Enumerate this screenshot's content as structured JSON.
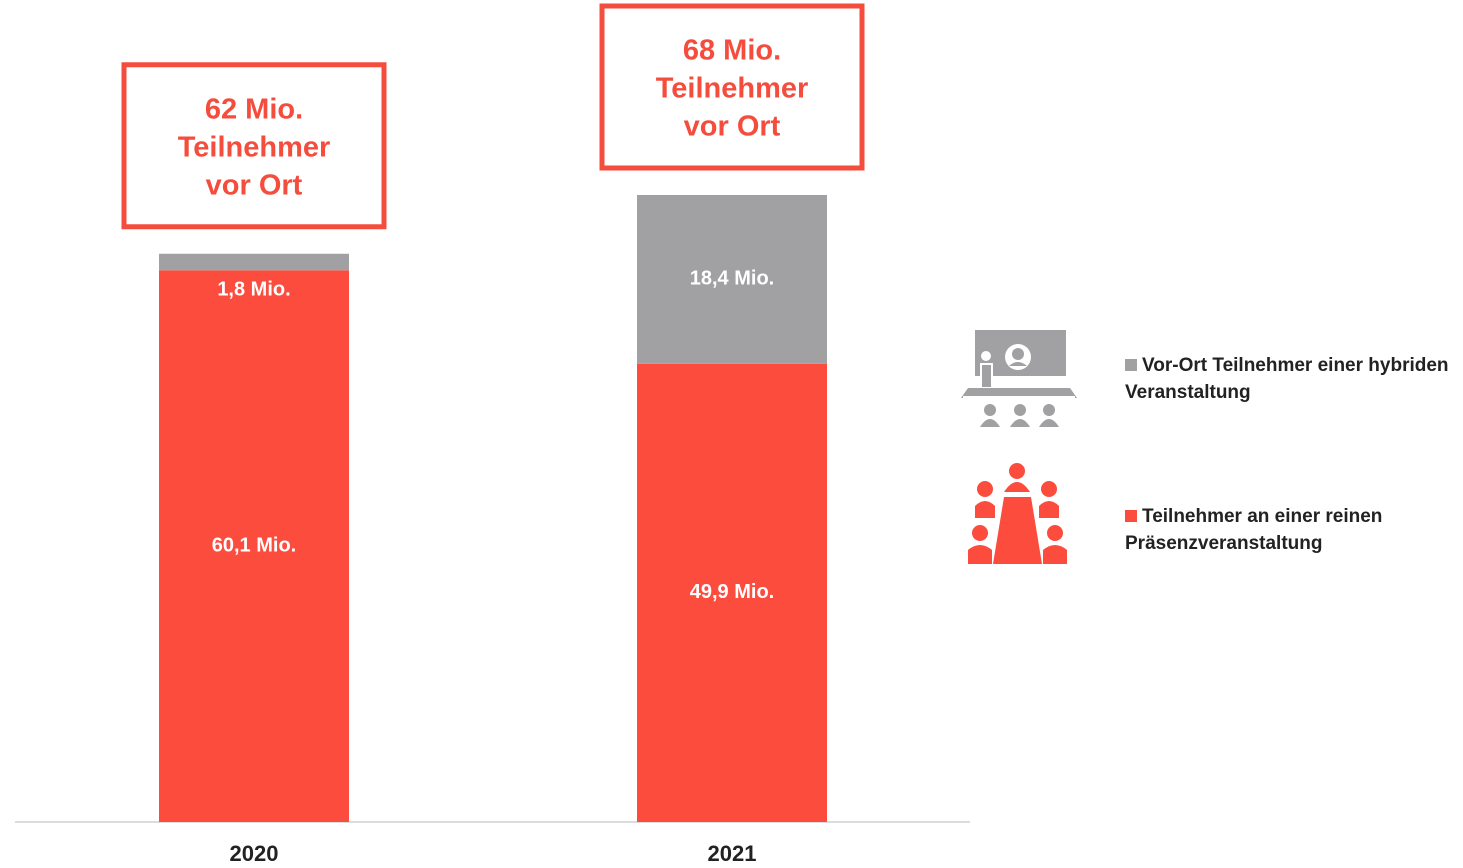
{
  "chart_data": {
    "type": "stacked-bar",
    "categories": [
      "2020",
      "2021"
    ],
    "series": [
      {
        "name": "Teilnehmer an einer reinen Präsenzveranstaltung",
        "color": "#fc4c3e",
        "values": [
          60.1,
          49.9
        ],
        "value_labels": [
          "60,1 Mio.",
          "49,9 Mio."
        ]
      },
      {
        "name": "Vor-Ort Teilnehmer einer hybriden Veranstaltung",
        "color": "#a1a0a2",
        "values": [
          1.8,
          18.4
        ],
        "value_labels": [
          "1,8 Mio.",
          "18,4 Mio."
        ]
      }
    ],
    "annotations": [
      {
        "lines": [
          "62 Mio.",
          "Teilnehmer",
          "vor Ort"
        ]
      },
      {
        "lines": [
          "68 Mio.",
          "Teilnehmer",
          "vor Ort"
        ]
      }
    ]
  }
}
